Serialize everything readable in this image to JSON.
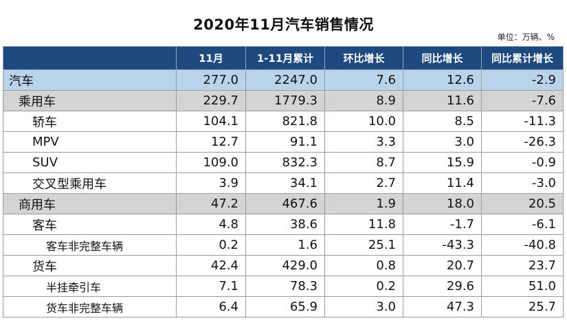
{
  "title": "2020年11月汽车销售情况",
  "unit_note": "单位：万辆、%",
  "chart_data": {
    "type": "table",
    "title": "2020年11月汽车销售情况",
    "unit": "单位：万辆、%",
    "columns": [
      "",
      "11月",
      "1-11月累计",
      "环比增长",
      "同比增长",
      "同比累计增长"
    ],
    "rows": [
      {
        "label": "汽车",
        "level": 0,
        "values": [
          "277.0",
          "2247.0",
          "7.6",
          "12.6",
          "-2.9"
        ]
      },
      {
        "label": "乘用车",
        "level": 1,
        "values": [
          "229.7",
          "1779.3",
          "8.9",
          "11.6",
          "-7.6"
        ]
      },
      {
        "label": "轿车",
        "level": 2,
        "values": [
          "104.1",
          "821.8",
          "10.0",
          "8.5",
          "-11.3"
        ]
      },
      {
        "label": "MPV",
        "level": 2,
        "values": [
          "12.7",
          "91.1",
          "3.3",
          "3.0",
          "-26.3"
        ]
      },
      {
        "label": "SUV",
        "level": 2,
        "values": [
          "109.0",
          "832.3",
          "8.7",
          "15.9",
          "-0.9"
        ]
      },
      {
        "label": "交叉型乘用车",
        "level": 2,
        "values": [
          "3.9",
          "34.1",
          "2.7",
          "11.4",
          "-3.0"
        ]
      },
      {
        "label": "商用车",
        "level": 1,
        "values": [
          "47.2",
          "467.6",
          "1.9",
          "18.0",
          "20.5"
        ]
      },
      {
        "label": "客车",
        "level": 2,
        "values": [
          "4.8",
          "38.6",
          "11.8",
          "-1.7",
          "-6.1"
        ]
      },
      {
        "label": "客车非完整车辆",
        "level": 3,
        "values": [
          "0.2",
          "1.6",
          "25.1",
          "-43.3",
          "-40.8"
        ]
      },
      {
        "label": "货车",
        "level": 2,
        "values": [
          "42.4",
          "429.0",
          "0.8",
          "20.7",
          "23.7"
        ]
      },
      {
        "label": "半挂牵引车",
        "level": 3,
        "values": [
          "7.1",
          "78.3",
          "0.2",
          "29.6",
          "51.0"
        ]
      },
      {
        "label": "货车非完整车辆",
        "level": 3,
        "values": [
          "6.4",
          "65.9",
          "3.0",
          "47.3",
          "25.7"
        ]
      }
    ]
  },
  "colors": {
    "header_bg": "#1e4a80",
    "level0_bg": "#b9d3ea",
    "level1_bg": "#d4d4d4"
  }
}
